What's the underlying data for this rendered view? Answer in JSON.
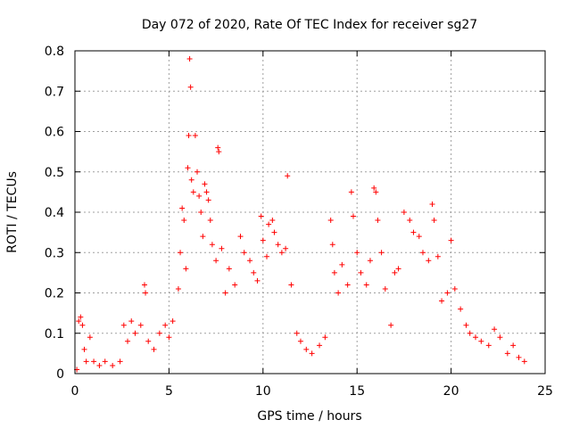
{
  "chart_data": {
    "type": "scatter",
    "title": "Day 072 of 2020, Rate Of TEC Index for receiver sg27",
    "xlabel": "GPS time / hours",
    "ylabel": "ROTI / TECUs",
    "xlim": [
      0,
      25
    ],
    "ylim": [
      0,
      0.8
    ],
    "xticks": [
      "0",
      "5",
      "10",
      "15",
      "20",
      "25"
    ],
    "yticks": [
      "0",
      "0.1",
      "0.2",
      "0.3",
      "0.4",
      "0.5",
      "0.6",
      "0.7",
      "0.8"
    ],
    "grid": true,
    "marker": "+",
    "color": "#ff0000",
    "series": [
      {
        "points": [
          [
            0.1,
            0.01
          ],
          [
            0.2,
            0.13
          ],
          [
            0.3,
            0.14
          ],
          [
            0.4,
            0.12
          ],
          [
            0.5,
            0.06
          ],
          [
            0.6,
            0.03
          ],
          [
            0.8,
            0.09
          ],
          [
            1.0,
            0.03
          ],
          [
            1.3,
            0.02
          ],
          [
            1.6,
            0.03
          ],
          [
            2.0,
            0.02
          ],
          [
            2.4,
            0.03
          ],
          [
            2.6,
            0.12
          ],
          [
            2.8,
            0.08
          ],
          [
            3.0,
            0.13
          ],
          [
            3.2,
            0.1
          ],
          [
            3.5,
            0.12
          ],
          [
            3.7,
            0.22
          ],
          [
            3.75,
            0.2
          ],
          [
            3.9,
            0.08
          ],
          [
            4.2,
            0.06
          ],
          [
            4.5,
            0.1
          ],
          [
            4.8,
            0.12
          ],
          [
            5.0,
            0.09
          ],
          [
            5.2,
            0.13
          ],
          [
            5.5,
            0.21
          ],
          [
            5.6,
            0.3
          ],
          [
            5.7,
            0.41
          ],
          [
            5.8,
            0.38
          ],
          [
            5.9,
            0.26
          ],
          [
            6.0,
            0.51
          ],
          [
            6.05,
            0.59
          ],
          [
            6.1,
            0.78
          ],
          [
            6.15,
            0.71
          ],
          [
            6.2,
            0.48
          ],
          [
            6.3,
            0.45
          ],
          [
            6.4,
            0.59
          ],
          [
            6.5,
            0.5
          ],
          [
            6.6,
            0.44
          ],
          [
            6.7,
            0.4
          ],
          [
            6.8,
            0.34
          ],
          [
            6.9,
            0.47
          ],
          [
            7.0,
            0.45
          ],
          [
            7.1,
            0.43
          ],
          [
            7.2,
            0.38
          ],
          [
            7.3,
            0.32
          ],
          [
            7.5,
            0.28
          ],
          [
            7.6,
            0.56
          ],
          [
            7.65,
            0.55
          ],
          [
            7.8,
            0.31
          ],
          [
            8.0,
            0.2
          ],
          [
            8.2,
            0.26
          ],
          [
            8.5,
            0.22
          ],
          [
            8.8,
            0.34
          ],
          [
            9.0,
            0.3
          ],
          [
            9.3,
            0.28
          ],
          [
            9.5,
            0.25
          ],
          [
            9.7,
            0.23
          ],
          [
            9.9,
            0.39
          ],
          [
            10.0,
            0.33
          ],
          [
            10.2,
            0.29
          ],
          [
            10.3,
            0.37
          ],
          [
            10.5,
            0.38
          ],
          [
            10.6,
            0.35
          ],
          [
            10.8,
            0.32
          ],
          [
            11.0,
            0.3
          ],
          [
            11.2,
            0.31
          ],
          [
            11.3,
            0.49
          ],
          [
            11.5,
            0.22
          ],
          [
            11.8,
            0.1
          ],
          [
            12.0,
            0.08
          ],
          [
            12.3,
            0.06
          ],
          [
            12.6,
            0.05
          ],
          [
            13.0,
            0.07
          ],
          [
            13.3,
            0.09
          ],
          [
            13.6,
            0.38
          ],
          [
            13.7,
            0.32
          ],
          [
            13.8,
            0.25
          ],
          [
            14.0,
            0.2
          ],
          [
            14.2,
            0.27
          ],
          [
            14.5,
            0.22
          ],
          [
            14.7,
            0.45
          ],
          [
            14.8,
            0.39
          ],
          [
            15.0,
            0.3
          ],
          [
            15.2,
            0.25
          ],
          [
            15.5,
            0.22
          ],
          [
            15.7,
            0.28
          ],
          [
            15.9,
            0.46
          ],
          [
            16.0,
            0.45
          ],
          [
            16.1,
            0.38
          ],
          [
            16.3,
            0.3
          ],
          [
            16.5,
            0.21
          ],
          [
            16.8,
            0.12
          ],
          [
            17.0,
            0.25
          ],
          [
            17.2,
            0.26
          ],
          [
            17.5,
            0.4
          ],
          [
            17.8,
            0.38
          ],
          [
            18.0,
            0.35
          ],
          [
            18.3,
            0.34
          ],
          [
            18.5,
            0.3
          ],
          [
            18.8,
            0.28
          ],
          [
            19.0,
            0.42
          ],
          [
            19.1,
            0.38
          ],
          [
            19.3,
            0.29
          ],
          [
            19.5,
            0.18
          ],
          [
            19.8,
            0.2
          ],
          [
            20.0,
            0.33
          ],
          [
            20.2,
            0.21
          ],
          [
            20.5,
            0.16
          ],
          [
            20.8,
            0.12
          ],
          [
            21.0,
            0.1
          ],
          [
            21.3,
            0.09
          ],
          [
            21.6,
            0.08
          ],
          [
            22.0,
            0.07
          ],
          [
            22.3,
            0.11
          ],
          [
            22.6,
            0.09
          ],
          [
            23.0,
            0.05
          ],
          [
            23.3,
            0.07
          ],
          [
            23.6,
            0.04
          ],
          [
            23.9,
            0.03
          ]
        ]
      }
    ]
  }
}
